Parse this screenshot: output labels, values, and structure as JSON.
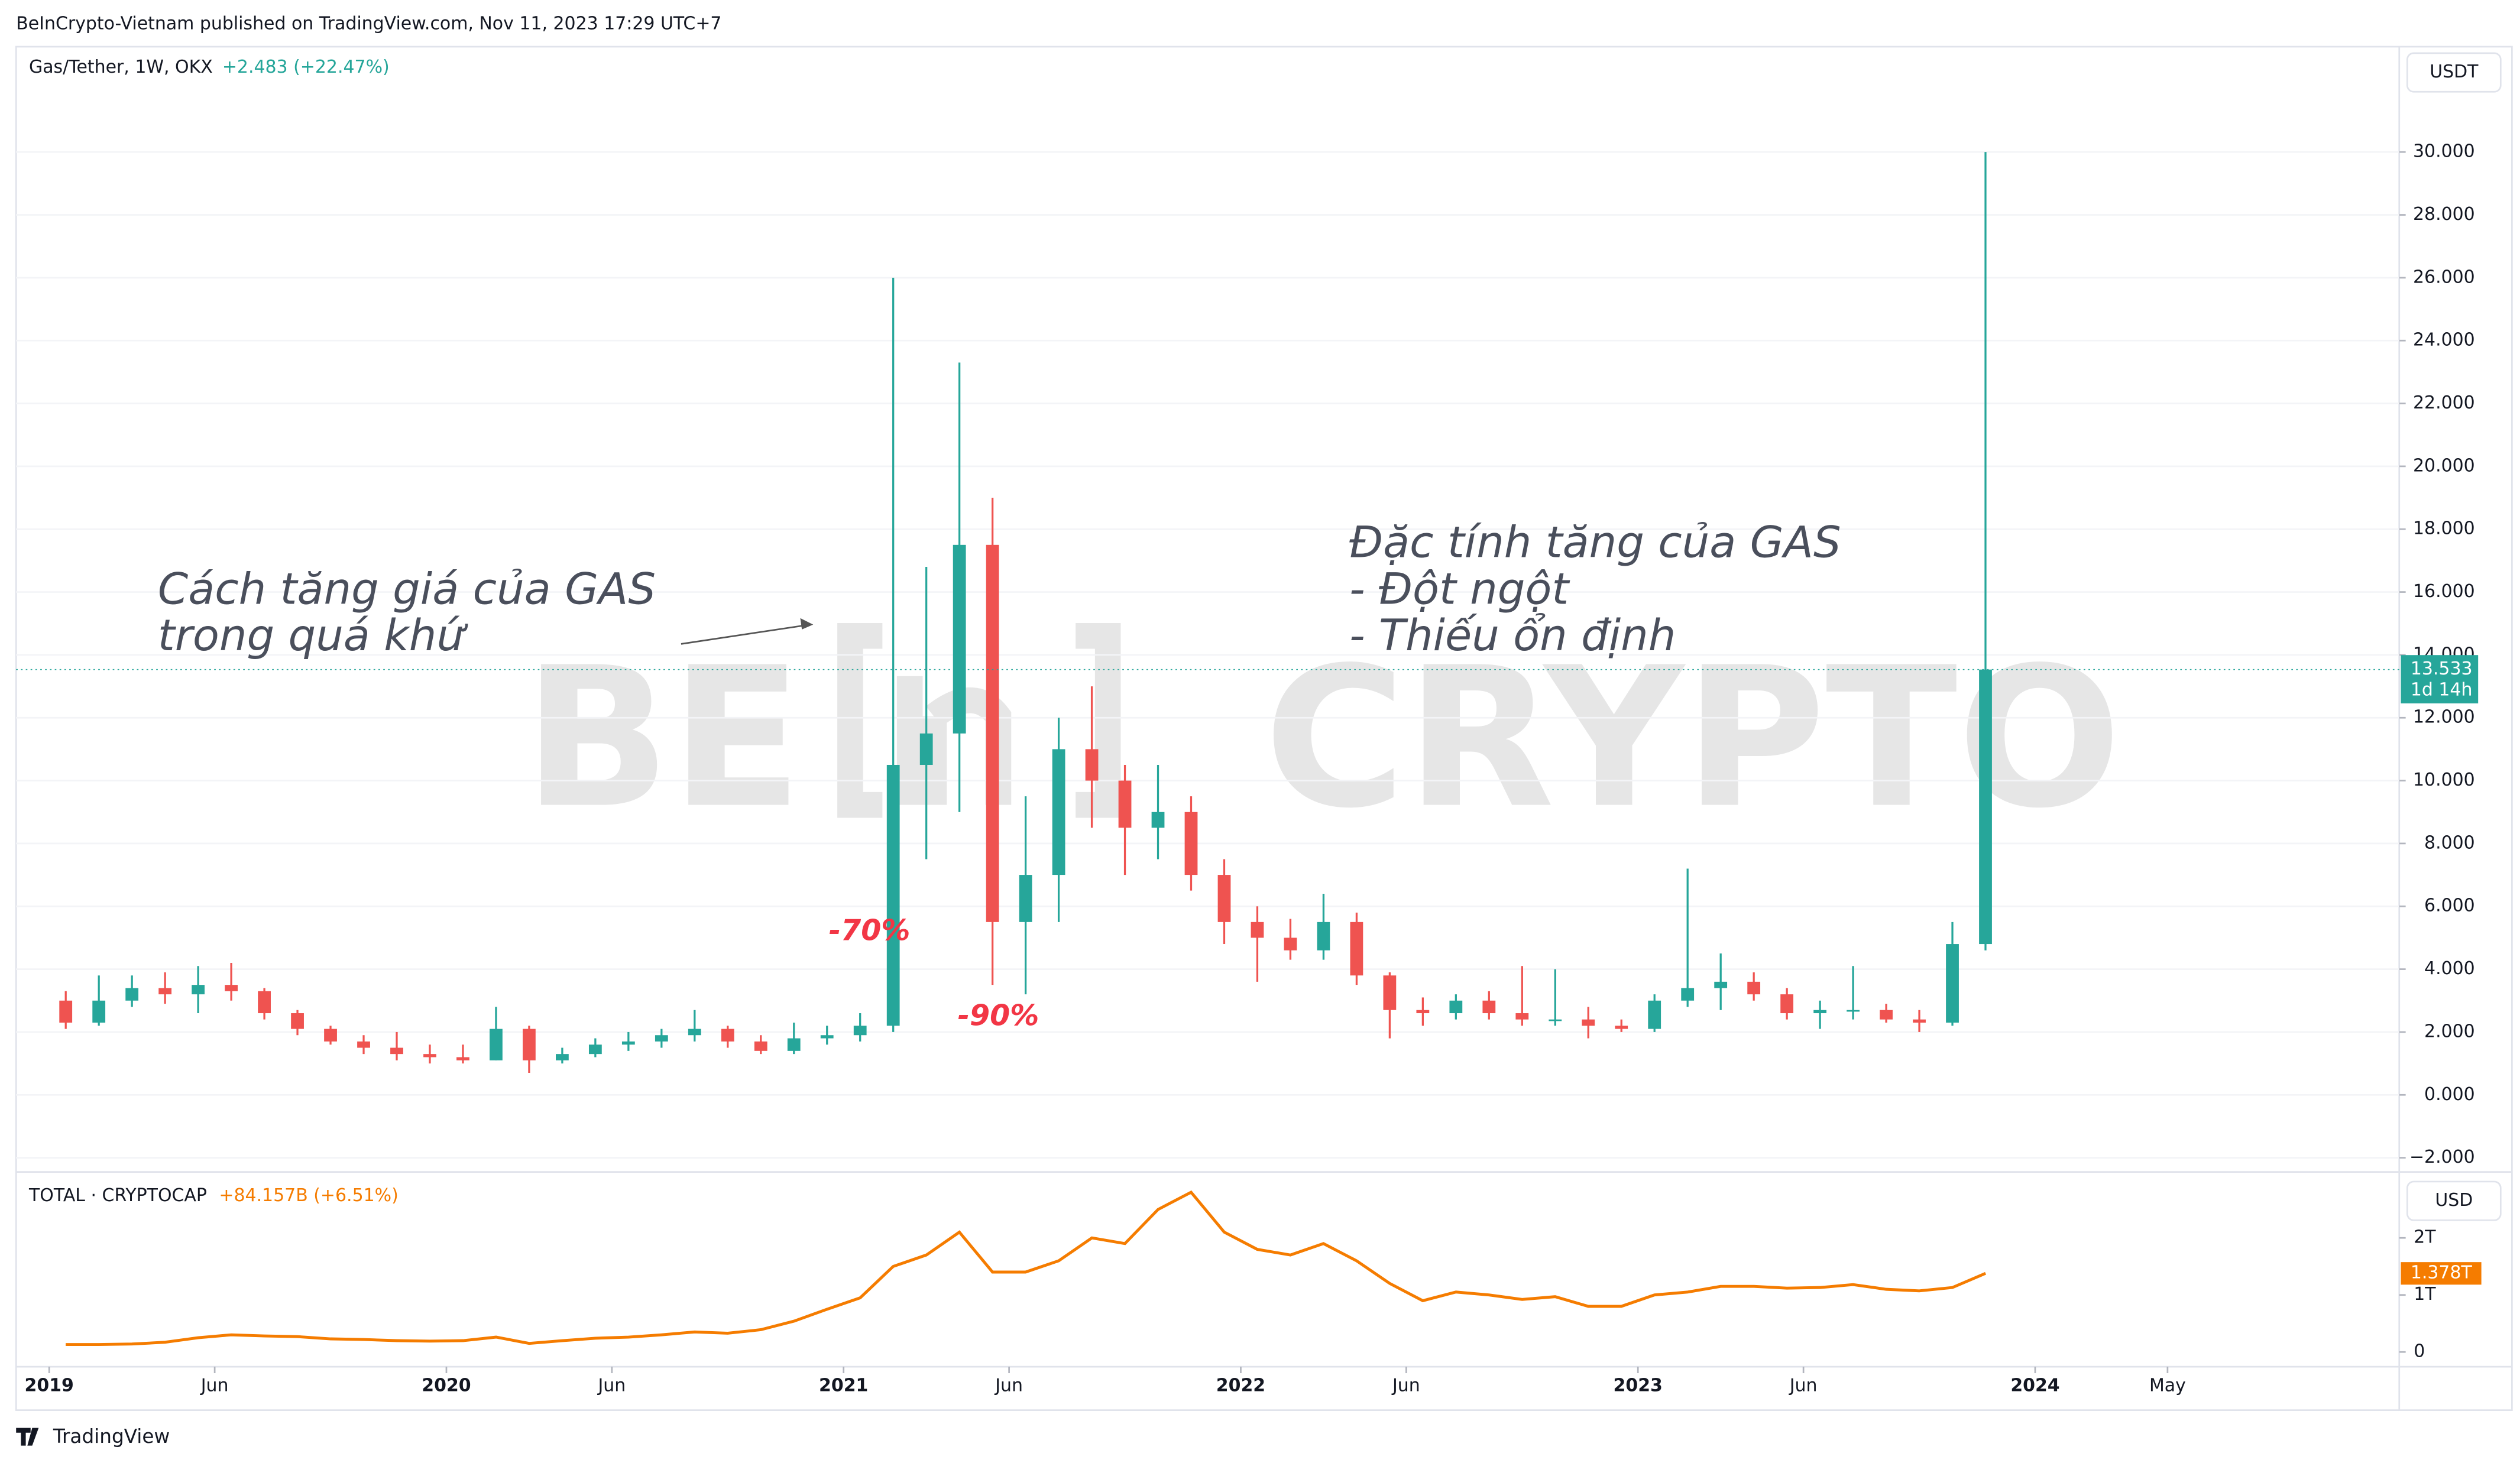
{
  "header": {
    "published": "BeInCrypto-Vietnam published on TradingView.com, Nov 11, 2023 17:29 UTC+7"
  },
  "watermark": {
    "left": "BE",
    "right": "CRYPTO"
  },
  "chart_data": [
    {
      "type": "candlestick",
      "title": "Gas/Tether, 1W, OKX",
      "change": "+2.483 (+22.47%)",
      "currency": "USDT",
      "up_color": "#26a69a",
      "down_color": "#ef5350",
      "x": [
        "2019-01",
        "2019-02",
        "2019-03",
        "2019-04",
        "2019-05",
        "2019-06",
        "2019-07",
        "2019-08",
        "2019-09",
        "2019-10",
        "2019-11",
        "2019-12",
        "2020-01",
        "2020-02",
        "2020-03",
        "2020-04",
        "2020-05",
        "2020-06",
        "2020-07",
        "2020-08",
        "2020-09",
        "2020-10",
        "2020-11",
        "2020-12",
        "2021-01",
        "2021-02",
        "2021-03",
        "2021-04",
        "2021-05",
        "2021-06",
        "2021-07",
        "2021-08",
        "2021-09",
        "2021-10",
        "2021-11",
        "2021-12",
        "2022-01",
        "2022-02",
        "2022-03",
        "2022-04",
        "2022-05",
        "2022-06",
        "2022-07",
        "2022-08",
        "2022-09",
        "2022-10",
        "2022-11",
        "2022-12",
        "2023-01",
        "2023-02",
        "2023-03",
        "2023-04",
        "2023-05",
        "2023-06",
        "2023-07",
        "2023-08",
        "2023-09",
        "2023-10",
        "2023-11"
      ],
      "open": [
        3.0,
        2.3,
        3.0,
        3.4,
        3.2,
        3.5,
        3.3,
        2.6,
        2.1,
        1.7,
        1.5,
        1.3,
        1.2,
        1.1,
        2.1,
        1.1,
        1.3,
        1.6,
        1.7,
        1.9,
        2.1,
        1.7,
        1.4,
        1.8,
        1.9,
        2.2,
        10.5,
        11.5,
        17.5,
        5.5,
        7.0,
        11.0,
        10.0,
        8.5,
        9.0,
        7.0,
        5.5,
        5.0,
        4.6,
        5.5,
        3.8,
        2.7,
        2.6,
        3.0,
        2.6,
        2.4,
        2.4,
        2.2,
        2.1,
        3.0,
        3.4,
        3.6,
        3.2,
        2.6,
        2.7,
        2.7,
        2.4,
        2.3,
        4.8
      ],
      "high": [
        3.3,
        3.8,
        3.8,
        3.9,
        4.1,
        4.2,
        3.4,
        2.7,
        2.2,
        1.9,
        2.0,
        1.6,
        1.6,
        2.8,
        2.2,
        1.5,
        1.8,
        2.0,
        2.1,
        2.7,
        2.2,
        1.9,
        2.3,
        2.2,
        2.6,
        26.0,
        16.8,
        23.3,
        19.0,
        9.5,
        12.0,
        13.0,
        10.5,
        10.5,
        9.5,
        7.5,
        6.0,
        5.6,
        6.4,
        5.8,
        3.9,
        3.1,
        3.2,
        3.3,
        4.1,
        4.0,
        2.8,
        2.4,
        3.2,
        7.2,
        4.5,
        3.9,
        3.4,
        3.0,
        4.1,
        2.9,
        2.7,
        5.5,
        30.0
      ],
      "low": [
        2.1,
        2.2,
        2.8,
        2.9,
        2.6,
        3.0,
        2.4,
        1.9,
        1.6,
        1.3,
        1.1,
        1.0,
        1.0,
        1.1,
        0.7,
        1.0,
        1.2,
        1.4,
        1.5,
        1.7,
        1.5,
        1.3,
        1.3,
        1.6,
        1.7,
        2.0,
        7.5,
        9.0,
        3.5,
        3.2,
        5.5,
        8.5,
        7.0,
        7.5,
        6.5,
        4.8,
        3.6,
        4.3,
        4.3,
        3.5,
        1.8,
        2.2,
        2.4,
        2.4,
        2.2,
        2.2,
        1.8,
        2.0,
        2.0,
        2.8,
        2.7,
        3.0,
        2.4,
        2.1,
        2.4,
        2.3,
        2.0,
        2.2,
        4.6
      ],
      "close": [
        2.3,
        3.0,
        3.4,
        3.2,
        3.5,
        3.3,
        2.6,
        2.1,
        1.7,
        1.5,
        1.3,
        1.2,
        1.1,
        2.1,
        1.1,
        1.3,
        1.6,
        1.7,
        1.9,
        2.1,
        1.7,
        1.4,
        1.8,
        1.9,
        2.2,
        10.5,
        11.5,
        17.5,
        5.5,
        7.0,
        11.0,
        10.0,
        8.5,
        9.0,
        7.0,
        5.5,
        5.0,
        4.6,
        5.5,
        3.8,
        2.7,
        2.6,
        3.0,
        2.6,
        2.4,
        2.4,
        2.2,
        2.1,
        3.0,
        3.4,
        3.6,
        3.2,
        2.6,
        2.7,
        2.7,
        2.4,
        2.3,
        4.8,
        13.533
      ],
      "last_value_label": "13.533",
      "countdown": "1d 14h",
      "ylim": [
        -2.4,
        33.3
      ],
      "yticks": [
        {
          "value": -2,
          "label": "−2.000"
        },
        {
          "value": 0,
          "label": "0.000"
        },
        {
          "value": 2,
          "label": "2.000"
        },
        {
          "value": 4,
          "label": "4.000"
        },
        {
          "value": 6,
          "label": "6.000"
        },
        {
          "value": 8,
          "label": "8.000"
        },
        {
          "value": 10,
          "label": "10.000"
        },
        {
          "value": 12,
          "label": "12.000"
        },
        {
          "value": 14,
          "label": "14.000"
        },
        {
          "value": 16,
          "label": "16.000"
        },
        {
          "value": 18,
          "label": "18.000"
        },
        {
          "value": 20,
          "label": "20.000"
        },
        {
          "value": 22,
          "label": "22.000"
        },
        {
          "value": 24,
          "label": "24.000"
        },
        {
          "value": 26,
          "label": "26.000"
        },
        {
          "value": 28,
          "label": "28.000"
        },
        {
          "value": 30,
          "label": "30.000"
        }
      ],
      "annotations": [
        "Cách tăng giá của GAS",
        "trong quá khứ",
        "Đặc tính tăng của GAS",
        "- Đột ngột",
        "- Thiếu ổn định",
        "-70%",
        "-90%"
      ]
    },
    {
      "type": "line",
      "title": "TOTAL · CRYPTOCAP",
      "change": "+84.157B (+6.51%)",
      "currency": "USD",
      "color": "#f57c00",
      "x": [
        "2019-01",
        "2019-02",
        "2019-03",
        "2019-04",
        "2019-05",
        "2019-06",
        "2019-07",
        "2019-08",
        "2019-09",
        "2019-10",
        "2019-11",
        "2019-12",
        "2020-01",
        "2020-02",
        "2020-03",
        "2020-04",
        "2020-05",
        "2020-06",
        "2020-07",
        "2020-08",
        "2020-09",
        "2020-10",
        "2020-11",
        "2020-12",
        "2021-01",
        "2021-02",
        "2021-03",
        "2021-04",
        "2021-05",
        "2021-06",
        "2021-07",
        "2021-08",
        "2021-09",
        "2021-10",
        "2021-11",
        "2021-12",
        "2022-01",
        "2022-02",
        "2022-03",
        "2022-04",
        "2022-05",
        "2022-06",
        "2022-07",
        "2022-08",
        "2022-09",
        "2022-10",
        "2022-11",
        "2022-12",
        "2023-01",
        "2023-02",
        "2023-03",
        "2023-04",
        "2023-05",
        "2023-06",
        "2023-07",
        "2023-08",
        "2023-09",
        "2023-10",
        "2023-11"
      ],
      "values": [
        0.13,
        0.13,
        0.14,
        0.17,
        0.25,
        0.3,
        0.28,
        0.27,
        0.23,
        0.22,
        0.2,
        0.19,
        0.2,
        0.26,
        0.15,
        0.2,
        0.24,
        0.26,
        0.3,
        0.35,
        0.33,
        0.39,
        0.54,
        0.75,
        0.95,
        1.5,
        1.7,
        2.1,
        1.4,
        1.4,
        1.6,
        2.0,
        1.9,
        2.5,
        2.8,
        2.1,
        1.8,
        1.7,
        1.9,
        1.6,
        1.2,
        0.9,
        1.05,
        1.0,
        0.92,
        0.97,
        0.8,
        0.8,
        1.0,
        1.05,
        1.15,
        1.15,
        1.12,
        1.13,
        1.18,
        1.1,
        1.07,
        1.13,
        1.378
      ],
      "last_value_label": "1.378T",
      "ylim": [
        -0.23,
        3.1
      ],
      "yticks": [
        0,
        {
          "value": 1,
          "label": "1T"
        },
        {
          "value": 2,
          "label": "2T"
        }
      ],
      "xlim": [
        "2018-12",
        "2024-12"
      ],
      "xticks": [
        {
          "value": "2019-01",
          "label": "2019"
        },
        {
          "value": "2019-06",
          "label": "Jun"
        },
        {
          "value": "2020-01",
          "label": "2020"
        },
        {
          "value": "2020-06",
          "label": "Jun"
        },
        {
          "value": "2021-01",
          "label": "2021"
        },
        {
          "value": "2021-06",
          "label": "Jun"
        },
        {
          "value": "2022-01",
          "label": "2022"
        },
        {
          "value": "2022-06",
          "label": "Jun"
        },
        {
          "value": "2023-01",
          "label": "2023"
        },
        {
          "value": "2023-06",
          "label": "Jun"
        },
        {
          "value": "2024-01",
          "label": "2024"
        },
        {
          "value": "2024-05",
          "label": "May"
        }
      ]
    }
  ],
  "footer": {
    "brand": "TradingView"
  }
}
